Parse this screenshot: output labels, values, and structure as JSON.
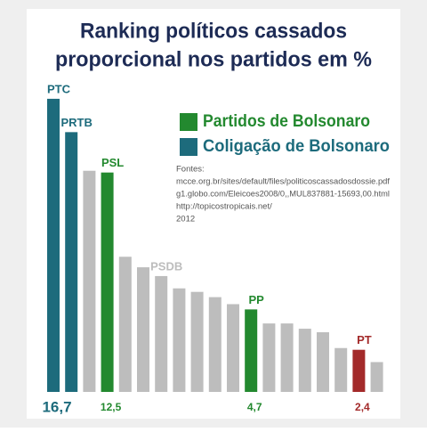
{
  "chart_data": {
    "type": "bar",
    "title": [
      "Ranking políticos cassados",
      "proporcional nos partidos em %"
    ],
    "categories": [
      "PTC",
      "PRTB",
      null,
      "PSL",
      null,
      null,
      "PSDB",
      null,
      null,
      null,
      null,
      "PP",
      null,
      null,
      null,
      null,
      null,
      "PT",
      null
    ],
    "values": [
      16.7,
      14.8,
      12.6,
      12.5,
      7.7,
      7.1,
      6.6,
      5.9,
      5.7,
      5.4,
      5.0,
      4.7,
      3.9,
      3.9,
      3.6,
      3.4,
      2.5,
      2.4,
      1.7
    ],
    "value_labels": [
      "16,7",
      null,
      null,
      "12,5",
      null,
      null,
      null,
      null,
      null,
      null,
      null,
      "4,7",
      null,
      null,
      null,
      null,
      null,
      "2,4",
      null
    ],
    "colors": [
      "#1d6b7c",
      "#1d6b7c",
      "#bdbdbd",
      "#23892f",
      "#bdbdbd",
      "#bdbdbd",
      "#bdbdbd",
      "#bdbdbd",
      "#bdbdbd",
      "#bdbdbd",
      "#bdbdbd",
      "#23892f",
      "#bdbdbd",
      "#bdbdbd",
      "#bdbdbd",
      "#bdbdbd",
      "#bdbdbd",
      "#a32a2a",
      "#bdbdbd"
    ],
    "ylim": [
      0,
      17
    ],
    "legend": [
      {
        "name": "Partidos de Bolsonaro",
        "color": "#23892f"
      },
      {
        "name": "Coligação de Bolsonaro",
        "color": "#1d6b7c"
      }
    ],
    "sources": [
      "Fontes:",
      "mcce.org.br/sites/default/files/politicoscassadosdossie.pdf",
      "g1.globo.com/Eleicoes2008/0,,MUL837881-15693,00.html",
      "http://topicostropicais.net/",
      "2012"
    ]
  }
}
